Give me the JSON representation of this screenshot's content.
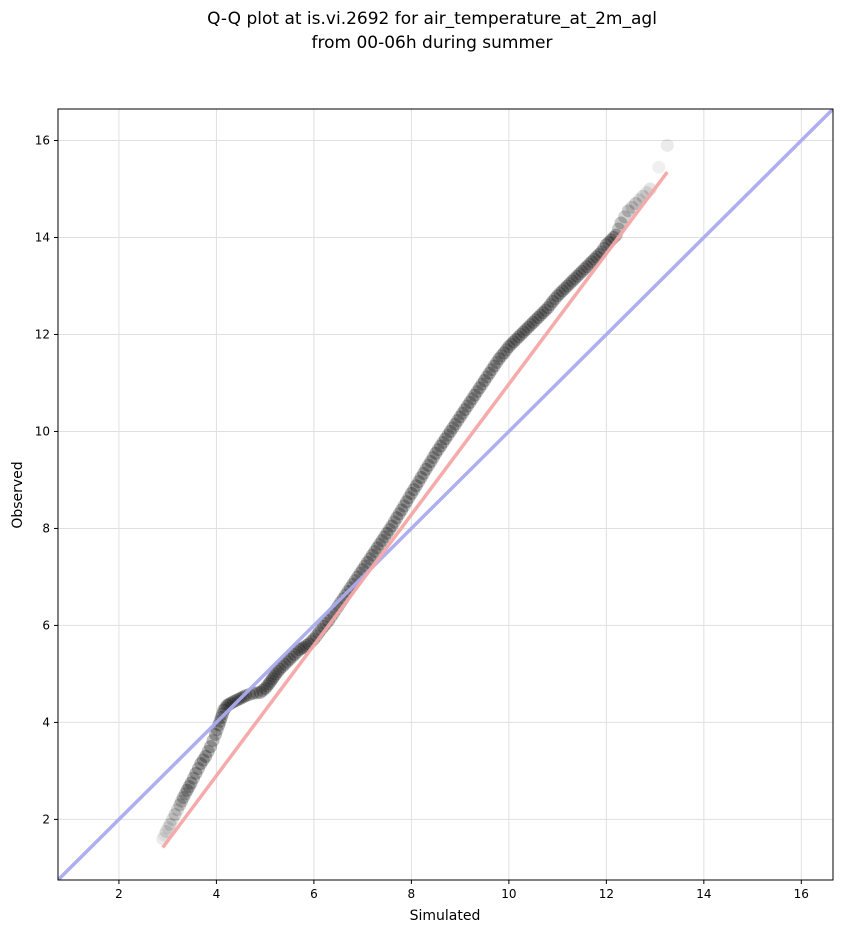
{
  "chart_data": {
    "type": "scatter",
    "title_line1": "Q-Q plot at is.vi.2692 for air_temperature_at_2m_agl",
    "title_line2": "from 00-06h during summer",
    "xlabel": "Simulated",
    "ylabel": "Observed",
    "xlim": [
      0.75,
      16.65
    ],
    "ylim": [
      0.75,
      16.65
    ],
    "xticks": [
      "2",
      "4",
      "6",
      "8",
      "10",
      "12",
      "14",
      "16"
    ],
    "yticks": [
      "2",
      "4",
      "6",
      "8",
      "10",
      "12",
      "14",
      "16"
    ],
    "grid": true,
    "colors": {
      "points": "#000000",
      "identity_line": "#aaaaf0",
      "fit_line": "#f5a6a6",
      "fit_line_dense": "#c03030",
      "identity_dense": "#3030c0",
      "grid": "#e0e0e0"
    },
    "identity_line": {
      "x": [
        0.75,
        16.65
      ],
      "y": [
        0.75,
        16.65
      ]
    },
    "fit_line": {
      "x": [
        2.9,
        13.25
      ],
      "y": [
        1.42,
        15.35
      ]
    },
    "quantile_points": {
      "x": [
        2.9,
        2.97,
        3.05,
        3.15,
        3.25,
        3.32,
        3.4,
        3.48,
        3.58,
        3.68,
        3.78,
        3.88,
        3.98,
        4.05,
        4.1,
        4.15,
        4.22,
        4.3,
        4.4,
        4.5,
        4.6,
        4.75,
        4.9,
        5.0,
        5.08,
        5.15,
        5.22,
        5.3,
        5.4,
        5.5,
        5.6,
        5.7,
        5.8,
        5.9,
        6.0,
        6.1,
        6.2,
        6.3,
        6.4,
        6.5,
        6.6,
        6.7,
        6.8,
        6.9,
        7.0,
        7.1,
        7.2,
        7.3,
        7.4,
        7.5,
        7.6,
        7.7,
        7.8,
        7.9,
        8.0,
        8.1,
        8.2,
        8.3,
        8.4,
        8.5,
        8.6,
        8.7,
        8.8,
        8.9,
        9.0,
        9.1,
        9.2,
        9.3,
        9.4,
        9.5,
        9.6,
        9.7,
        9.8,
        9.9,
        10.0,
        10.1,
        10.2,
        10.3,
        10.4,
        10.5,
        10.6,
        10.7,
        10.8,
        10.9,
        11.0,
        11.1,
        11.2,
        11.3,
        11.4,
        11.5,
        11.6,
        11.7,
        11.8,
        11.9,
        12.0,
        12.1,
        12.2,
        12.3,
        12.45,
        12.6,
        12.75,
        12.9,
        13.25
      ],
      "y": [
        1.6,
        1.75,
        1.9,
        2.1,
        2.3,
        2.45,
        2.6,
        2.75,
        2.95,
        3.15,
        3.3,
        3.5,
        3.75,
        3.95,
        4.1,
        4.25,
        4.35,
        4.4,
        4.45,
        4.5,
        4.55,
        4.6,
        4.62,
        4.7,
        4.8,
        4.9,
        5.0,
        5.1,
        5.2,
        5.3,
        5.4,
        5.5,
        5.55,
        5.62,
        5.72,
        5.85,
        5.98,
        6.1,
        6.25,
        6.4,
        6.55,
        6.7,
        6.85,
        7.0,
        7.15,
        7.3,
        7.45,
        7.6,
        7.75,
        7.9,
        8.05,
        8.22,
        8.38,
        8.55,
        8.72,
        8.88,
        9.05,
        9.22,
        9.38,
        9.55,
        9.7,
        9.85,
        10.0,
        10.15,
        10.3,
        10.45,
        10.6,
        10.75,
        10.9,
        11.05,
        11.2,
        11.35,
        11.5,
        11.62,
        11.75,
        11.85,
        11.95,
        12.05,
        12.15,
        12.25,
        12.35,
        12.45,
        12.55,
        12.68,
        12.8,
        12.9,
        13.0,
        13.1,
        13.2,
        13.3,
        13.4,
        13.5,
        13.6,
        13.7,
        13.85,
        13.95,
        14.05,
        14.3,
        14.55,
        14.7,
        14.85,
        15.0,
        15.9
      ]
    }
  }
}
